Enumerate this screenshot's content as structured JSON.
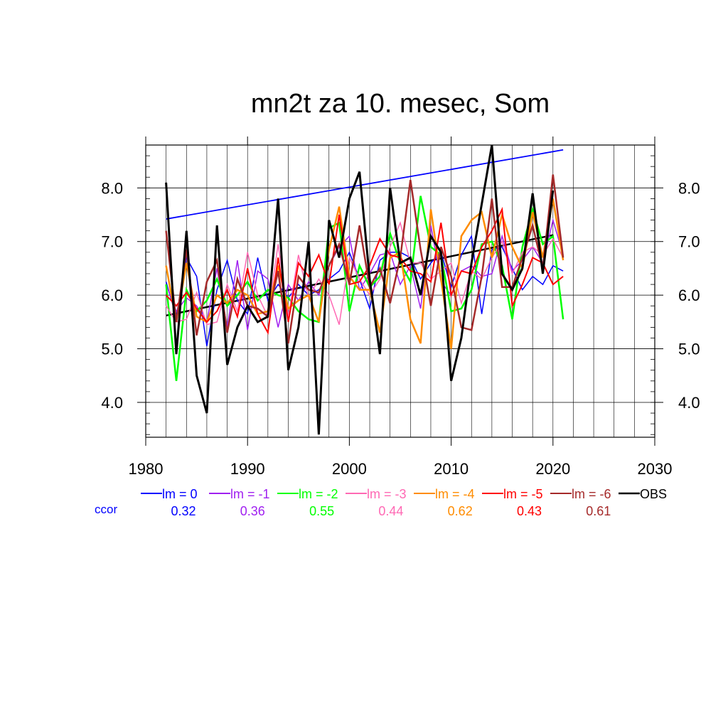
{
  "chart_data": {
    "type": "line",
    "title": "mn2t za 10. mesec, Som",
    "xlabel": "",
    "ylabel": "",
    "xlim": [
      1980,
      2030
    ],
    "ylim": [
      3.35,
      8.8
    ],
    "x_ticks": [
      1980,
      1990,
      2000,
      2010,
      2020,
      2030
    ],
    "x_tick_labels": [
      "1980",
      "1990",
      "2000",
      "2010",
      "2020",
      "2030"
    ],
    "y_ticks": [
      4.0,
      5.0,
      6.0,
      7.0,
      8.0
    ],
    "y_tick_labels": [
      "4.0",
      "5.0",
      "6.0",
      "7.0",
      "8.0"
    ],
    "grid": true,
    "legend_position": "bottom",
    "x": [
      1982,
      1983,
      1984,
      1985,
      1986,
      1987,
      1988,
      1989,
      1990,
      1991,
      1992,
      1993,
      1994,
      1995,
      1996,
      1997,
      1998,
      1999,
      2000,
      2001,
      2002,
      2003,
      2004,
      2005,
      2006,
      2007,
      2008,
      2009,
      2010,
      2011,
      2012,
      2013,
      2014,
      2015,
      2016,
      2017,
      2018,
      2019,
      2020,
      2021
    ],
    "series": [
      {
        "name": "lm = 0",
        "color": "#0000ff",
        "width": 1.5,
        "values": [
          6.25,
          5.6,
          6.7,
          6.35,
          5.05,
          6.1,
          6.65,
          5.9,
          5.65,
          6.7,
          5.9,
          6.2,
          5.95,
          6.2,
          6.0,
          6.1,
          6.3,
          6.45,
          6.8,
          6.3,
          5.75,
          6.65,
          6.8,
          6.8,
          6.7,
          6.3,
          6.6,
          6.8,
          6.15,
          6.75,
          7.1,
          5.65,
          6.85,
          6.9,
          6.5,
          6.1,
          6.35,
          6.2,
          6.55,
          6.45
        ]
      },
      {
        "name": "lm = -1",
        "color": "#a020f0",
        "width": 1.5,
        "values": [
          6.2,
          5.7,
          5.95,
          5.8,
          5.5,
          6.5,
          5.4,
          6.65,
          5.35,
          6.45,
          6.3,
          5.4,
          6.2,
          5.9,
          6.25,
          6.0,
          6.55,
          6.9,
          7.1,
          6.1,
          6.4,
          6.75,
          6.8,
          6.2,
          6.55,
          5.75,
          7.3,
          6.25,
          6.0,
          6.45,
          6.55,
          6.35,
          6.4,
          7.1,
          6.45,
          6.65,
          6.9,
          6.6,
          7.4,
          6.75
        ]
      },
      {
        "name": "lm = -2",
        "color": "#00ff00",
        "width": 2.5,
        "values": [
          6.2,
          4.4,
          6.1,
          5.7,
          5.9,
          6.3,
          5.8,
          6.0,
          6.25,
          5.9,
          6.1,
          6.0,
          5.95,
          5.7,
          5.55,
          5.5,
          7.25,
          7.35,
          5.7,
          6.55,
          6.15,
          6.35,
          7.15,
          6.6,
          6.25,
          7.85,
          6.9,
          6.75,
          5.7,
          5.75,
          6.1,
          6.95,
          7.0,
          6.55,
          5.55,
          6.9,
          7.6,
          6.95,
          7.1,
          5.55
        ]
      },
      {
        "name": "lm = -3",
        "color": "#ff69b4",
        "width": 1.5,
        "values": [
          5.8,
          5.5,
          5.55,
          6.05,
          5.45,
          5.5,
          6.2,
          5.7,
          6.8,
          6.0,
          5.6,
          6.95,
          5.6,
          6.75,
          5.95,
          6.3,
          6.0,
          5.45,
          6.7,
          6.3,
          6.0,
          6.3,
          6.9,
          7.35,
          6.6,
          6.6,
          6.3,
          6.45,
          6.6,
          5.85,
          6.45,
          6.3,
          6.7,
          7.0,
          6.4,
          6.8,
          6.9,
          6.75,
          7.05,
          6.7
        ]
      },
      {
        "name": "lm = -4",
        "color": "#ff8c00",
        "width": 2.5,
        "values": [
          6.55,
          5.5,
          6.6,
          5.6,
          5.5,
          6.0,
          5.85,
          6.1,
          6.0,
          5.65,
          5.7,
          6.55,
          5.75,
          5.9,
          6.0,
          5.5,
          6.85,
          7.65,
          6.35,
          6.1,
          6.1,
          5.3,
          6.7,
          6.8,
          5.55,
          5.1,
          7.6,
          6.3,
          5.0,
          7.1,
          7.4,
          7.55,
          6.7,
          7.5,
          6.9,
          6.5,
          7.55,
          6.7,
          7.8,
          6.65
        ]
      },
      {
        "name": "lm = -5",
        "color": "#ff0000",
        "width": 2.0,
        "values": [
          6.0,
          5.8,
          6.05,
          5.75,
          5.5,
          5.7,
          6.1,
          5.6,
          6.5,
          5.65,
          5.3,
          6.7,
          5.5,
          6.6,
          6.35,
          6.75,
          6.2,
          7.5,
          6.2,
          6.25,
          6.55,
          7.05,
          6.75,
          6.7,
          6.45,
          6.4,
          6.25,
          7.35,
          6.0,
          6.45,
          6.4,
          6.9,
          7.2,
          7.6,
          5.8,
          6.2,
          6.7,
          6.6,
          6.2,
          6.35
        ]
      },
      {
        "name": "lm = -6",
        "color": "#a52a2a",
        "width": 2.5,
        "values": [
          7.2,
          5.5,
          6.85,
          5.25,
          6.25,
          6.65,
          5.3,
          6.3,
          5.8,
          5.75,
          5.6,
          6.45,
          5.1,
          6.35,
          6.1,
          6.05,
          6.55,
          6.95,
          6.2,
          7.3,
          6.15,
          6.5,
          5.85,
          6.7,
          8.15,
          6.85,
          5.8,
          6.9,
          6.35,
          5.4,
          5.35,
          6.35,
          7.8,
          6.15,
          6.15,
          6.7,
          7.3,
          6.5,
          8.25,
          6.7
        ]
      },
      {
        "name": "OBS",
        "color": "#000000",
        "width": 3.0,
        "values": [
          8.1,
          4.9,
          7.2,
          4.5,
          3.8,
          7.3,
          4.7,
          5.4,
          5.8,
          5.5,
          5.6,
          7.8,
          4.6,
          5.4,
          7.0,
          3.4,
          7.4,
          6.7,
          7.8,
          8.3,
          6.3,
          4.9,
          8.0,
          6.6,
          6.7,
          6.0,
          7.1,
          6.8,
          4.4,
          5.2,
          6.6,
          7.7,
          8.8,
          6.4,
          6.1,
          6.5,
          7.9,
          6.4,
          7.95,
          null
        ]
      }
    ],
    "trend_lines": [
      {
        "name": "lm = 0 trend",
        "color": "#0000ff",
        "width": 1.8,
        "x": [
          1982,
          2021
        ],
        "y": [
          7.42,
          8.71
        ]
      },
      {
        "name": "OBS trend",
        "color": "#000000",
        "width": 2.5,
        "x": [
          1982,
          2020
        ],
        "y": [
          5.62,
          7.12
        ]
      }
    ],
    "correlation_label": "ccor",
    "correlations": [
      {
        "series": "lm = 0",
        "value": "0.32"
      },
      {
        "series": "lm = -1",
        "value": "0.36"
      },
      {
        "series": "lm = -2",
        "value": "0.55"
      },
      {
        "series": "lm = -3",
        "value": "0.44"
      },
      {
        "series": "lm = -4",
        "value": "0.62"
      },
      {
        "series": "lm = -5",
        "value": "0.43"
      },
      {
        "series": "lm = -6",
        "value": "0.61"
      }
    ],
    "colors": {
      "ccor_label": "#0000ff",
      "grid": "#000000"
    }
  }
}
